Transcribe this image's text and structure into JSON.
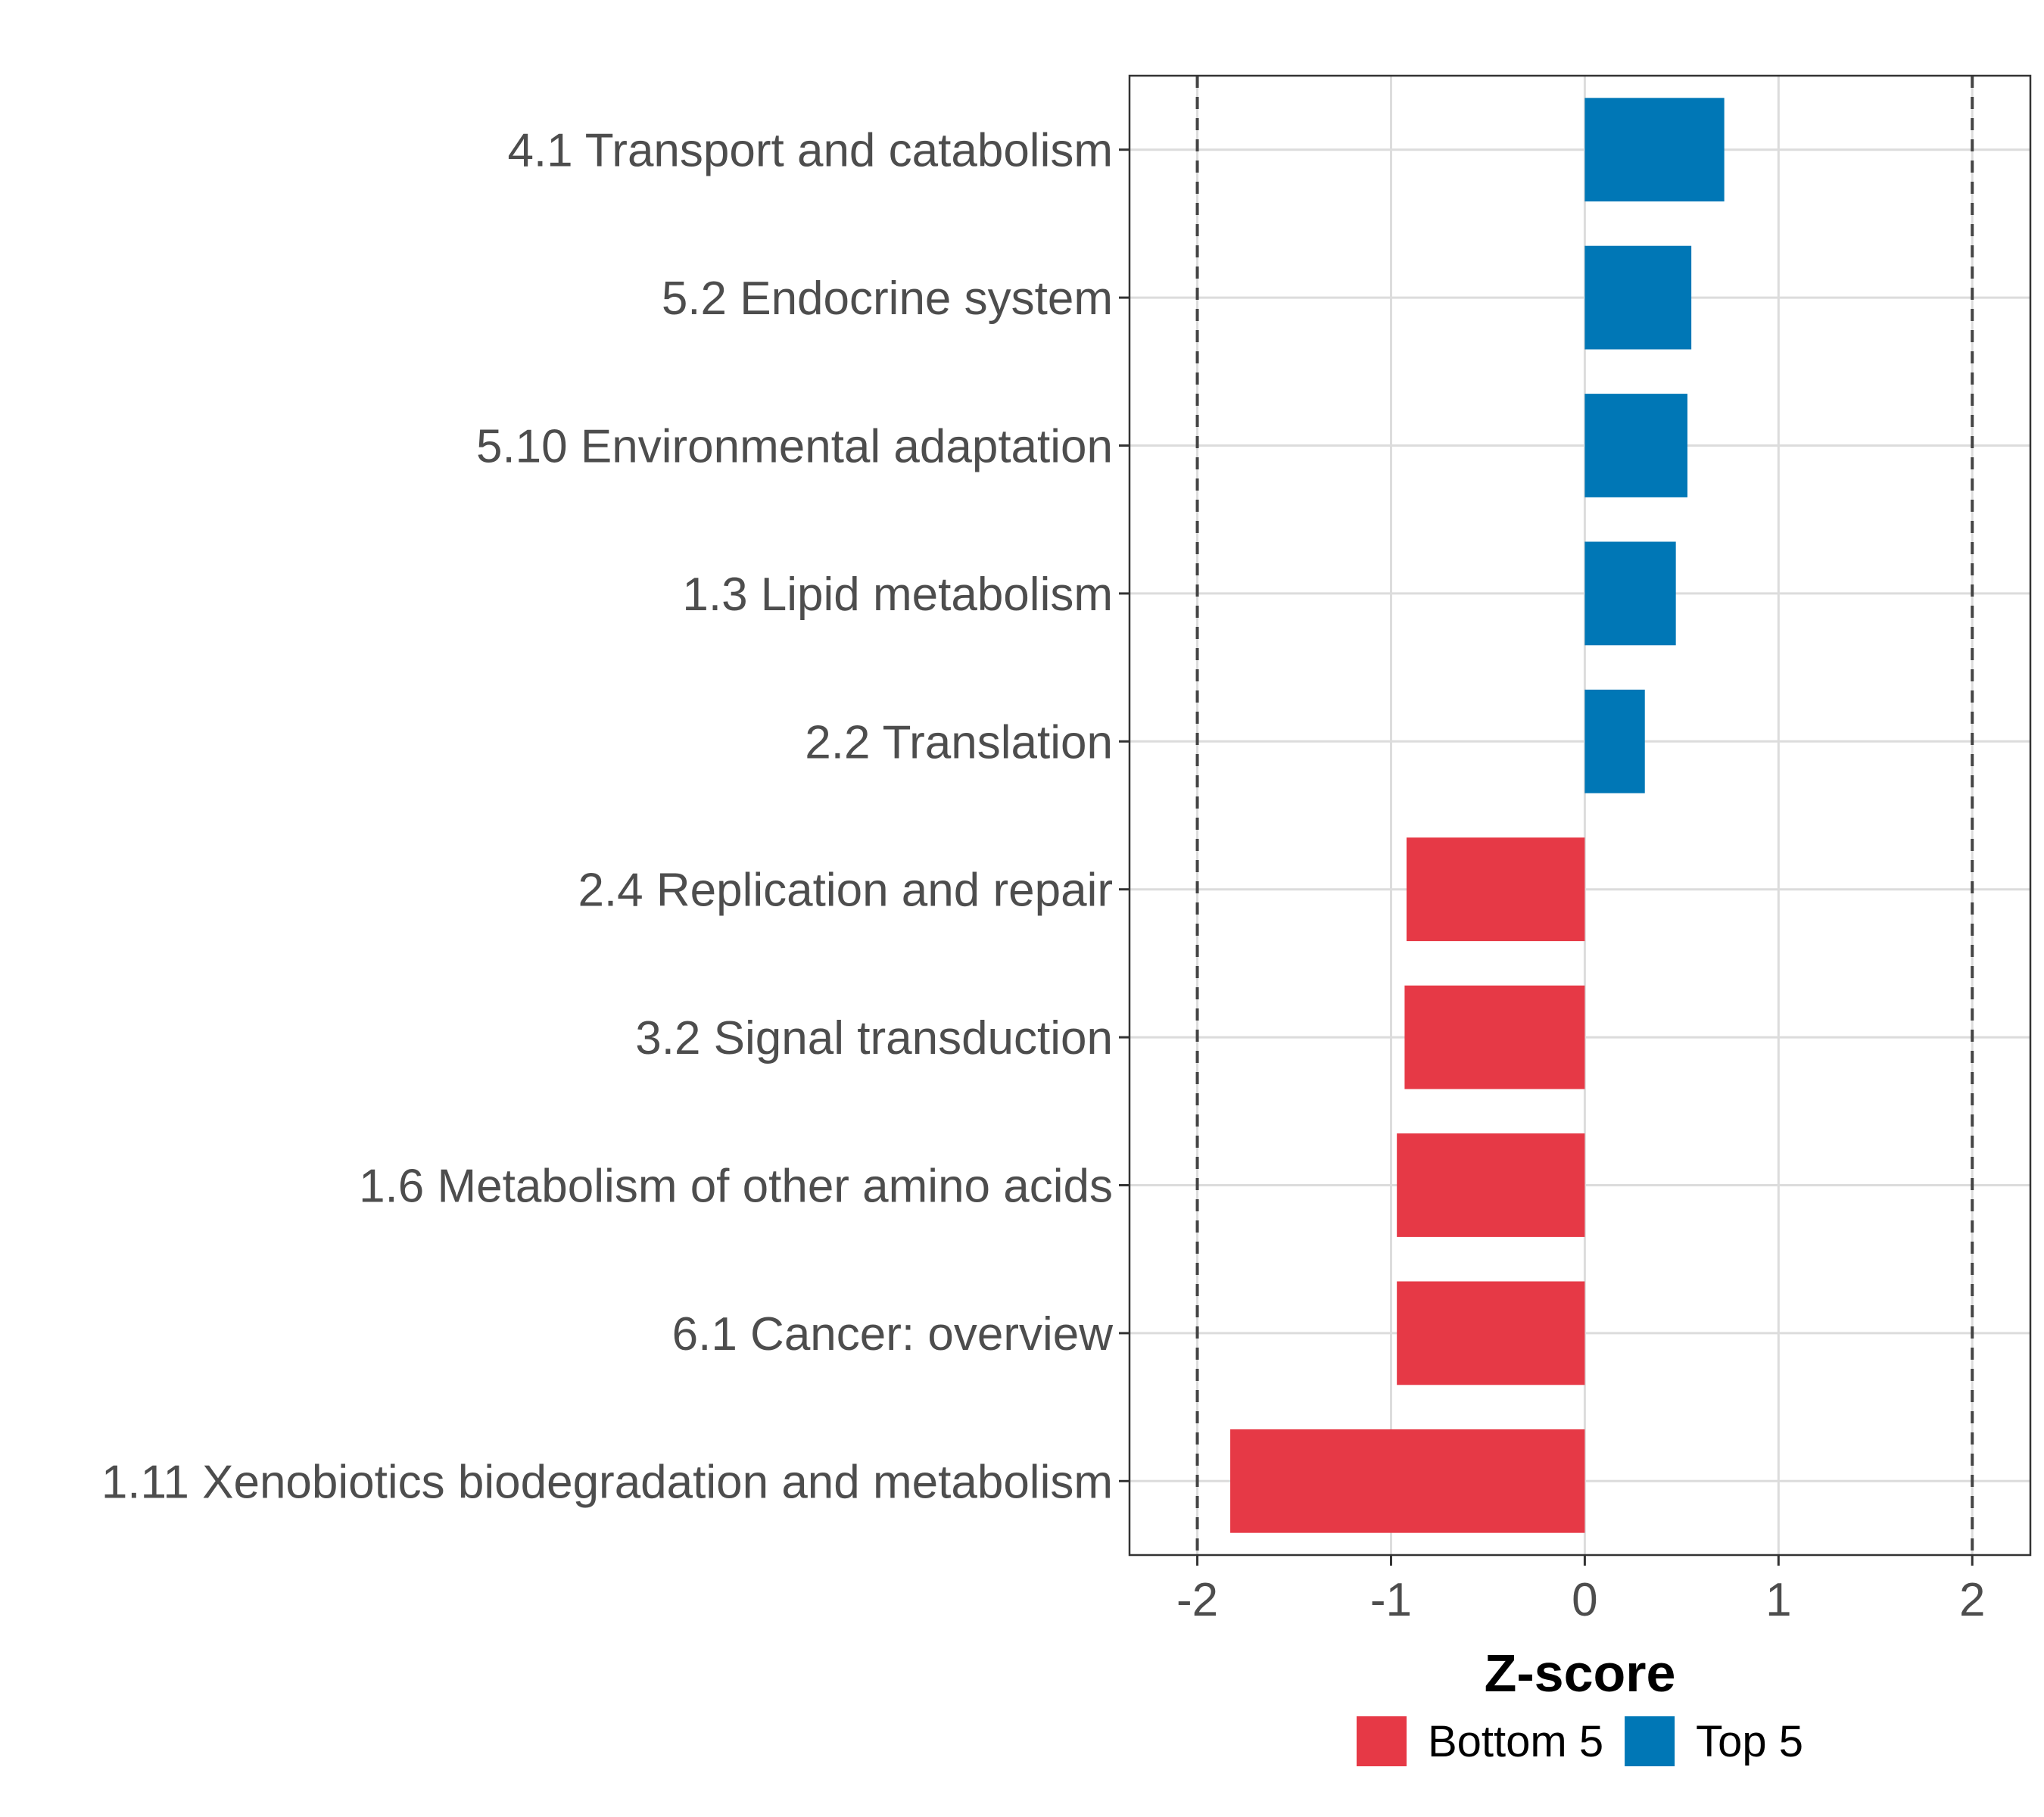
{
  "chart_data": {
    "type": "bar",
    "orientation": "horizontal",
    "categories": [
      "4.1 Transport and catabolism",
      "5.2 Endocrine system",
      "5.10 Environmental adaptation",
      "1.3 Lipid metabolism",
      "2.2 Translation",
      "2.4 Replication and repair",
      "3.2 Signal transduction",
      "1.6 Metabolism of other amino acids",
      "6.1 Cancer: overview",
      "1.11 Xenobiotics biodegradation and metabolism"
    ],
    "values": [
      0.72,
      0.55,
      0.53,
      0.47,
      0.31,
      -0.92,
      -0.93,
      -0.97,
      -0.97,
      -1.83
    ],
    "groups": [
      "Top 5",
      "Top 5",
      "Top 5",
      "Top 5",
      "Top 5",
      "Bottom 5",
      "Bottom 5",
      "Bottom 5",
      "Bottom 5",
      "Bottom 5"
    ],
    "xlabel": "Z-score",
    "ylabel": "",
    "xlim": [
      -2.35,
      2.3
    ],
    "xticks": [
      -2,
      -1,
      0,
      1,
      2
    ],
    "xtick_labels": [
      "-2",
      "-1",
      "0",
      "1",
      "2"
    ],
    "reference_lines": [
      -2,
      2
    ],
    "grid": true,
    "legend": {
      "placement": "bottom",
      "entries": [
        {
          "label": "Bottom 5",
          "color": "#e63946"
        },
        {
          "label": "Top 5",
          "color": "#0077b6"
        }
      ]
    }
  }
}
